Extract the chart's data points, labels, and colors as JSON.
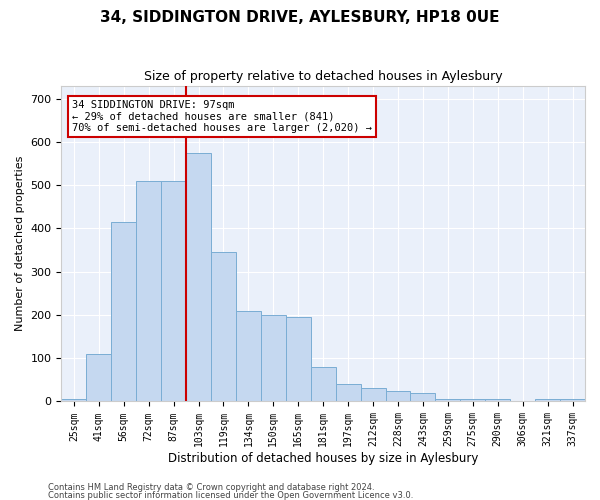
{
  "title": "34, SIDDINGTON DRIVE, AYLESBURY, HP18 0UE",
  "subtitle": "Size of property relative to detached houses in Aylesbury",
  "xlabel": "Distribution of detached houses by size in Aylesbury",
  "ylabel": "Number of detached properties",
  "categories": [
    "25sqm",
    "41sqm",
    "56sqm",
    "72sqm",
    "87sqm",
    "103sqm",
    "119sqm",
    "134sqm",
    "150sqm",
    "165sqm",
    "181sqm",
    "197sqm",
    "212sqm",
    "228sqm",
    "243sqm",
    "259sqm",
    "275sqm",
    "290sqm",
    "306sqm",
    "321sqm",
    "337sqm"
  ],
  "bar_heights": [
    5,
    110,
    415,
    510,
    510,
    575,
    345,
    210,
    200,
    195,
    80,
    40,
    30,
    25,
    20,
    5,
    5,
    5,
    0,
    5,
    5
  ],
  "bar_color": "#c5d8f0",
  "bar_edge_color": "#7aadd4",
  "vline_x": 4.5,
  "vline_color": "#cc0000",
  "annotation_text": "34 SIDDINGTON DRIVE: 97sqm\n← 29% of detached houses are smaller (841)\n70% of semi-detached houses are larger (2,020) →",
  "annotation_box_color": "white",
  "annotation_box_edge": "#cc0000",
  "ylim": [
    0,
    730
  ],
  "yticks": [
    0,
    100,
    200,
    300,
    400,
    500,
    600,
    700
  ],
  "background_color": "#eaf0fa",
  "grid_color": "#ffffff",
  "footer1": "Contains HM Land Registry data © Crown copyright and database right 2024.",
  "footer2": "Contains public sector information licensed under the Open Government Licence v3.0."
}
